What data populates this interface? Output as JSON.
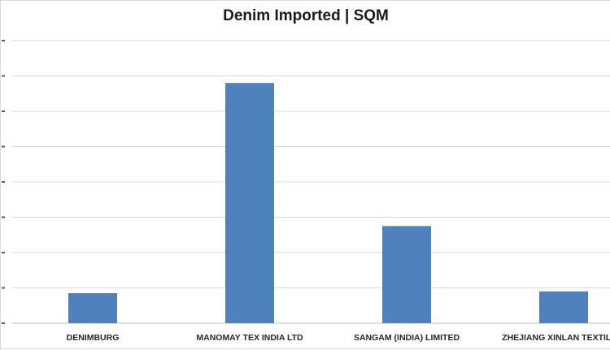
{
  "chart_data": {
    "type": "bar",
    "title": "Denim Imported | SQM",
    "categories": [
      "DENIMBURG",
      "MANOMAY TEX INDIA LTD",
      "SANGAM (INDIA) LIMITED",
      "ZHEJIANG XINLAN TEXTILE C"
    ],
    "values": [
      0.85,
      6.8,
      2.75,
      0.9
    ],
    "ylim": [
      0,
      8
    ],
    "grid": true,
    "bar_color": "#4f81bd",
    "grid_color": "#d9d9d9",
    "axis_color": "#bfbfbf"
  }
}
